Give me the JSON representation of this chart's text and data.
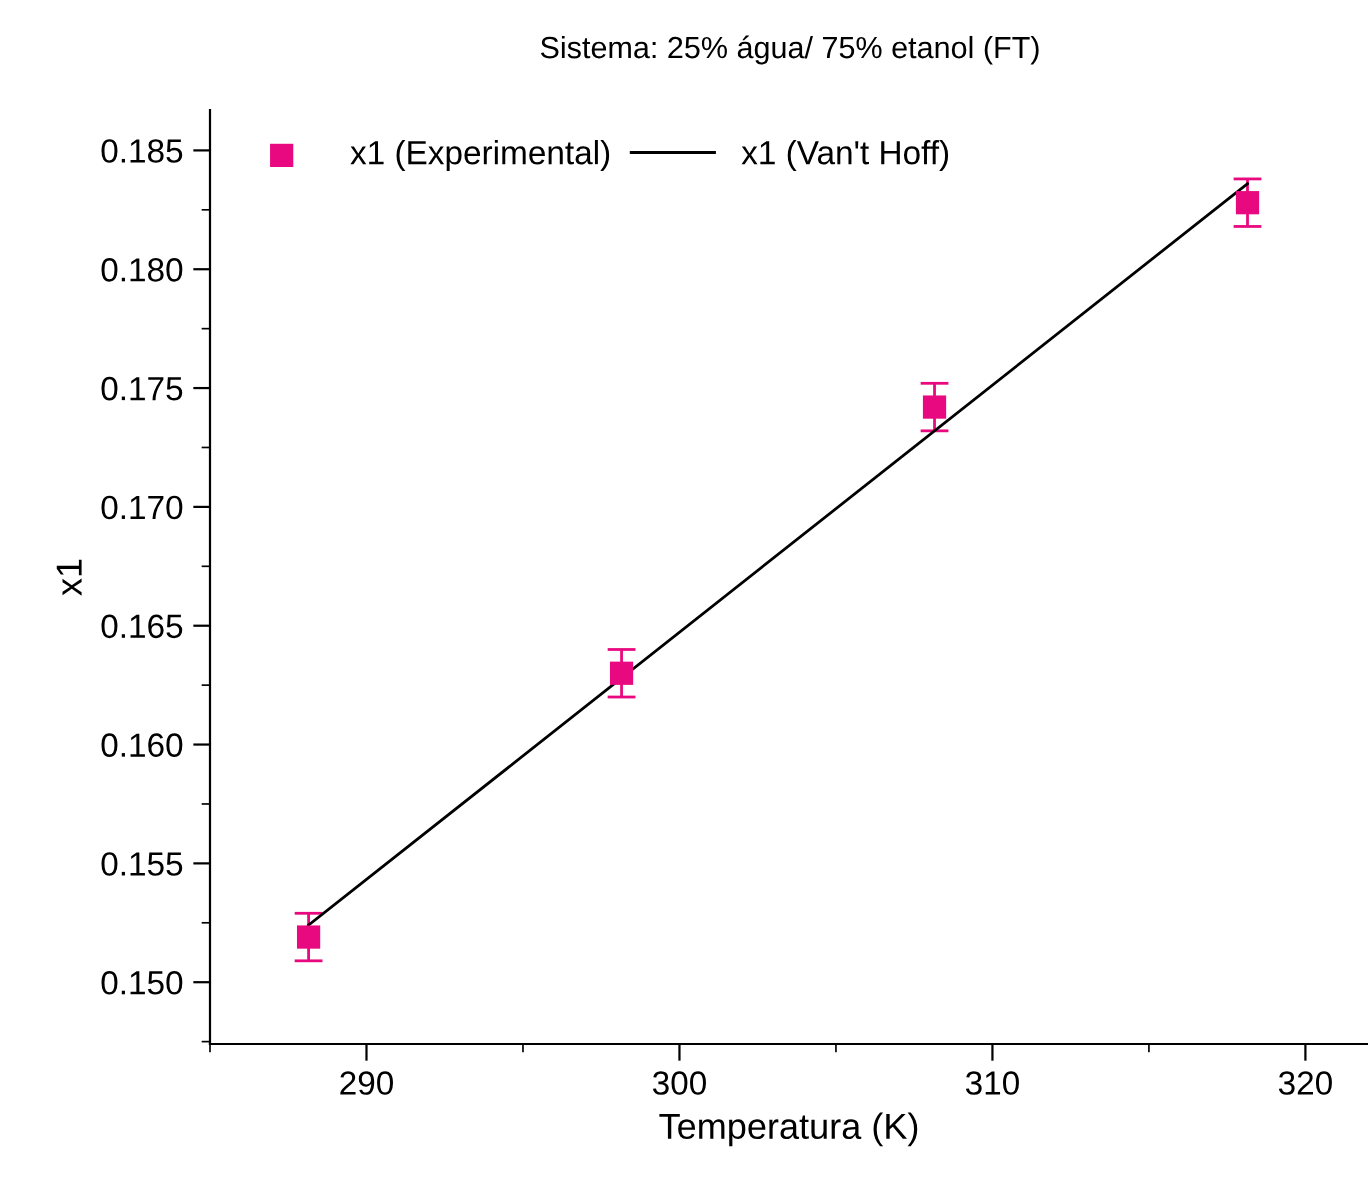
{
  "chart_data": {
    "type": "scatter",
    "title": "Sistema: 25% água/ 75% etanol (FT)",
    "xlabel": "Temperatura (K)",
    "ylabel": "x1",
    "x": [
      288.15,
      298.15,
      308.15,
      318.15
    ],
    "series": [
      {
        "name": "x1 (Experimental)",
        "color": "#e8087f",
        "marker": "square",
        "values": [
          0.1519,
          0.163,
          0.1742,
          0.1828
        ],
        "errors": [
          0.001,
          0.001,
          0.001,
          0.001
        ]
      },
      {
        "name": "x1 (Van't Hoff)",
        "type": "line",
        "color": "#000000",
        "marker": "none",
        "line_style": "solid",
        "x": [
          288.15,
          318.15
        ],
        "values": [
          0.1524,
          0.1836
        ]
      }
    ],
    "xlim": [
      285,
      322
    ],
    "xticks": [
      290,
      300,
      310,
      320
    ],
    "ylim": [
      0.1474,
      0.1867
    ],
    "yticks": [
      {
        "value": 0.15,
        "label": "0.150"
      },
      {
        "value": 0.155,
        "label": "0.155"
      },
      {
        "value": 0.16,
        "label": "0.160"
      },
      {
        "value": 0.165,
        "label": "0.165"
      },
      {
        "value": 0.17,
        "label": "0.170"
      },
      {
        "value": 0.175,
        "label": "0.175"
      },
      {
        "value": 0.18,
        "label": "0.180"
      },
      {
        "value": 0.185,
        "label": "0.185"
      }
    ],
    "grid": false,
    "legend": "top left"
  }
}
